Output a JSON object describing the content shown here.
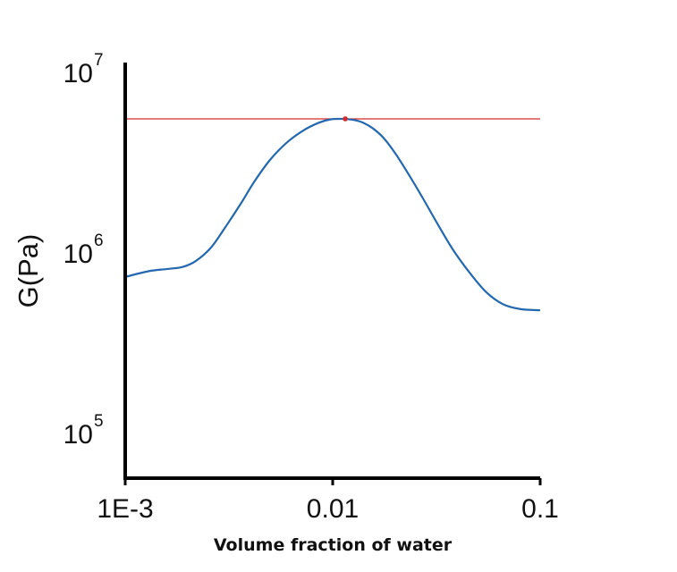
{
  "chart_data": {
    "type": "line",
    "title": "",
    "xlabel": "Volume fraction of water",
    "ylabel": "G(Pa)",
    "x_scale": "log",
    "y_scale": "log",
    "xlim": [
      0.001,
      0.1
    ],
    "ylim": [
      50000,
      10000000
    ],
    "x_ticks": [
      {
        "value": 0.001,
        "label": "1E-3"
      },
      {
        "value": 0.01,
        "label": "0.01"
      },
      {
        "value": 0.1,
        "label": "0.1"
      }
    ],
    "y_ticks": [
      {
        "value": 100000,
        "base": "10",
        "exp": "5"
      },
      {
        "value": 1000000,
        "base": "10",
        "exp": "6"
      },
      {
        "value": 10000000,
        "base": "10",
        "exp": "7"
      }
    ],
    "grid": false,
    "series": [
      {
        "color": "#2468b0",
        "x": [
          0.001,
          0.0013,
          0.0016,
          0.0019,
          0.0022,
          0.0026,
          0.003,
          0.0036,
          0.0042,
          0.005,
          0.006,
          0.0072,
          0.0086,
          0.0098,
          0.011,
          0.0118,
          0.0128,
          0.014,
          0.0155,
          0.0175,
          0.02,
          0.023,
          0.027,
          0.032,
          0.038,
          0.046,
          0.055,
          0.066,
          0.08,
          0.1
        ],
        "y": [
          650000,
          700000,
          720000,
          740000,
          800000,
          950000,
          1200000,
          1650000,
          2200000,
          2900000,
          3600000,
          4200000,
          4650000,
          4850000,
          4880000,
          4860000,
          4800000,
          4650000,
          4350000,
          3850000,
          3150000,
          2450000,
          1800000,
          1280000,
          920000,
          680000,
          535000,
          460000,
          432000,
          425000
        ]
      }
    ],
    "reference_line": {
      "y": 4880000,
      "color": "#d42a2a"
    },
    "highlight_point": {
      "x": 0.0115,
      "y": 4880000,
      "color": "#d42a2a"
    }
  }
}
